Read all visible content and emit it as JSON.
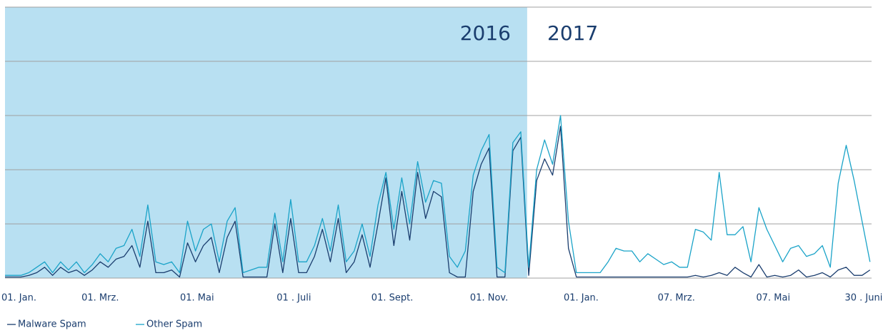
{
  "chart_data": {
    "type": "line",
    "annotations": [
      "2016",
      "2017"
    ],
    "shade_x": [
      0,
      329
    ],
    "shade_color": "#b8e0f2",
    "x": [
      0,
      5,
      10,
      15,
      20,
      25,
      30,
      35,
      40,
      45,
      50,
      55,
      60,
      65,
      70,
      75,
      80,
      85,
      90,
      95,
      100,
      105,
      110,
      115,
      120,
      125,
      130,
      135,
      140,
      145,
      150,
      155,
      160,
      165,
      170,
      175,
      180,
      185,
      190,
      195,
      200,
      205,
      210,
      215,
      220,
      225,
      230,
      235,
      240,
      245,
      250,
      255,
      260,
      265,
      270,
      275,
      280,
      285,
      290,
      295,
      300,
      305,
      310,
      315,
      320,
      325,
      330,
      335,
      340,
      345,
      350,
      355,
      360,
      365,
      370,
      375,
      380,
      385,
      390,
      395,
      400,
      405,
      410,
      415,
      420,
      425,
      430,
      435,
      440,
      445,
      450,
      455,
      460,
      465,
      470,
      475,
      480,
      485,
      490,
      495,
      500,
      505,
      510,
      515,
      520,
      525,
      530,
      535,
      540,
      545
    ],
    "xlim": [
      0,
      546
    ],
    "xticks": [
      {
        "value": 0,
        "label": "01. Jan."
      },
      {
        "value": 60,
        "label": "01. Mrz."
      },
      {
        "value": 121,
        "label": "01. Mai"
      },
      {
        "value": 182,
        "label": "01 . Juli"
      },
      {
        "value": 244,
        "label": "01. Sept."
      },
      {
        "value": 305,
        "label": "01. Nov."
      },
      {
        "value": 363,
        "label": "01. Jan."
      },
      {
        "value": 423,
        "label": "07. Mrz."
      },
      {
        "value": 484,
        "label": "07. Mai"
      },
      {
        "value": 541,
        "label": "30 . Juni"
      }
    ],
    "ylim": [
      0,
      5
    ],
    "yticks": [
      0,
      1,
      2,
      3,
      4,
      5
    ],
    "grid": true,
    "series": [
      {
        "name": "Malware Spam",
        "color": "#1a3d6e",
        "values": [
          0.02,
          0.02,
          0.02,
          0.05,
          0.1,
          0.2,
          0.05,
          0.2,
          0.1,
          0.15,
          0.05,
          0.15,
          0.3,
          0.2,
          0.35,
          0.4,
          0.6,
          0.2,
          1.05,
          0.1,
          0.1,
          0.15,
          0.02,
          0.65,
          0.3,
          0.6,
          0.75,
          0.1,
          0.75,
          1.05,
          0.02,
          0.02,
          0.02,
          0.02,
          1.0,
          0.1,
          1.1,
          0.1,
          0.1,
          0.4,
          0.9,
          0.3,
          1.1,
          0.1,
          0.3,
          0.8,
          0.2,
          1.0,
          1.85,
          0.6,
          1.6,
          0.7,
          1.95,
          1.1,
          1.6,
          1.5,
          0.1,
          0.02,
          0.02,
          1.6,
          2.1,
          2.4,
          0.02,
          0.02,
          2.35,
          2.6,
          0.05,
          1.8,
          2.2,
          1.9,
          2.8,
          0.55,
          0.02,
          0.02,
          0.02,
          0.02,
          0.02,
          0.02,
          0.02,
          0.02,
          0.02,
          0.02,
          0.02,
          0.02,
          0.02,
          0.02,
          0.02,
          0.05,
          0.02,
          0.05,
          0.1,
          0.05,
          0.2,
          0.1,
          0.02,
          0.25,
          0.02,
          0.05,
          0.02,
          0.05,
          0.15,
          0.02,
          0.05,
          0.1,
          0.02,
          0.15,
          0.2,
          0.05,
          0.05,
          0.15
        ]
      },
      {
        "name": "Other Spam",
        "color": "#1aa3c8",
        "values": [
          0.05,
          0.05,
          0.05,
          0.1,
          0.2,
          0.3,
          0.1,
          0.3,
          0.15,
          0.3,
          0.1,
          0.25,
          0.45,
          0.3,
          0.55,
          0.6,
          0.9,
          0.4,
          1.35,
          0.3,
          0.25,
          0.3,
          0.1,
          1.05,
          0.5,
          0.9,
          1.0,
          0.3,
          1.05,
          1.3,
          0.1,
          0.15,
          0.2,
          0.2,
          1.2,
          0.3,
          1.45,
          0.3,
          0.3,
          0.6,
          1.1,
          0.5,
          1.35,
          0.3,
          0.5,
          1.0,
          0.4,
          1.35,
          1.95,
          0.9,
          1.85,
          1.0,
          2.15,
          1.4,
          1.8,
          1.75,
          0.4,
          0.2,
          0.5,
          1.9,
          2.35,
          2.65,
          0.2,
          0.1,
          2.5,
          2.7,
          0.2,
          2.0,
          2.55,
          2.1,
          3.0,
          1.05,
          0.1,
          0.1,
          0.1,
          0.1,
          0.3,
          0.55,
          0.5,
          0.5,
          0.3,
          0.45,
          0.35,
          0.25,
          0.3,
          0.2,
          0.2,
          0.9,
          0.85,
          0.7,
          1.95,
          0.8,
          0.8,
          0.95,
          0.3,
          1.3,
          0.9,
          0.6,
          0.3,
          0.55,
          0.6,
          0.4,
          0.45,
          0.6,
          0.2,
          1.75,
          2.45,
          1.8,
          1.05,
          0.3
        ]
      }
    ]
  }
}
